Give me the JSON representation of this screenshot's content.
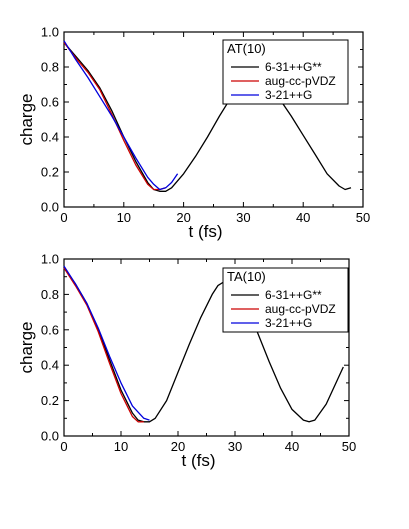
{
  "chart_data": [
    {
      "type": "line",
      "xlabel": "t (fs)",
      "ylabel": "charge",
      "xlim": [
        0,
        50
      ],
      "ylim": [
        0,
        1.0
      ],
      "xticks": [
        0,
        10,
        20,
        30,
        40,
        50
      ],
      "xtick_labels": [
        "0",
        "10",
        "20",
        "30",
        "40",
        "50"
      ],
      "yticks": [
        0.0,
        0.2,
        0.4,
        0.6,
        0.8,
        1.0
      ],
      "ytick_labels": [
        "0.0",
        "0.2",
        "0.4",
        "0.6",
        "0.8",
        "1.0"
      ],
      "grid": false,
      "legend_position": "top-right",
      "legend_title": "AT(10)",
      "series": [
        {
          "name": "6-31++G**",
          "color": "#000000",
          "x": [
            0,
            2,
            4,
            6,
            8,
            10,
            12,
            14,
            15,
            16,
            17,
            18,
            20,
            22,
            24,
            26,
            28,
            30,
            31,
            32,
            34,
            36,
            38,
            40,
            42,
            44,
            46,
            47,
            48
          ],
          "y": [
            0.94,
            0.86,
            0.78,
            0.68,
            0.55,
            0.4,
            0.26,
            0.14,
            0.1,
            0.09,
            0.09,
            0.11,
            0.19,
            0.29,
            0.4,
            0.52,
            0.63,
            0.72,
            0.74,
            0.74,
            0.7,
            0.62,
            0.52,
            0.41,
            0.3,
            0.19,
            0.12,
            0.1,
            0.11
          ]
        },
        {
          "name": "aug-cc-pVDZ",
          "color": "#cc0000",
          "x": [
            0,
            2,
            4,
            6,
            8,
            10,
            12,
            14,
            15,
            16,
            17
          ],
          "y": [
            0.94,
            0.85,
            0.77,
            0.67,
            0.53,
            0.38,
            0.24,
            0.13,
            0.1,
            0.1,
            0.11
          ]
        },
        {
          "name": "3-21++G",
          "color": "#0000dd",
          "x": [
            0,
            2,
            4,
            6,
            8,
            10,
            12,
            14,
            15,
            16,
            17,
            18,
            19
          ],
          "y": [
            0.95,
            0.84,
            0.74,
            0.63,
            0.52,
            0.4,
            0.28,
            0.17,
            0.13,
            0.1,
            0.11,
            0.14,
            0.19
          ]
        }
      ]
    },
    {
      "type": "line",
      "xlabel": "t (fs)",
      "ylabel": "charge",
      "xlim": [
        0,
        50
      ],
      "ylim": [
        0,
        1.0
      ],
      "xticks": [
        0,
        10,
        20,
        30,
        40,
        50
      ],
      "xtick_labels": [
        "0",
        "10",
        "20",
        "30",
        "40",
        "50"
      ],
      "yticks": [
        0.0,
        0.2,
        0.4,
        0.6,
        0.8,
        1.0
      ],
      "ytick_labels": [
        "0.0",
        "0.2",
        "0.4",
        "0.6",
        "0.8",
        "1.0"
      ],
      "grid": false,
      "legend_position": "top-right",
      "legend_title": "TA(10)",
      "series": [
        {
          "name": "6-31++G**",
          "color": "#000000",
          "x": [
            0,
            2,
            4,
            6,
            8,
            10,
            12,
            13,
            14,
            15,
            16,
            18,
            20,
            22,
            24,
            26,
            27,
            28,
            29,
            30,
            32,
            34,
            36,
            38,
            40,
            42,
            43,
            44,
            46,
            48,
            49
          ],
          "y": [
            0.95,
            0.86,
            0.75,
            0.6,
            0.43,
            0.26,
            0.13,
            0.09,
            0.08,
            0.08,
            0.1,
            0.2,
            0.36,
            0.52,
            0.67,
            0.8,
            0.85,
            0.87,
            0.87,
            0.85,
            0.74,
            0.58,
            0.42,
            0.27,
            0.15,
            0.09,
            0.08,
            0.09,
            0.18,
            0.32,
            0.39
          ]
        },
        {
          "name": "aug-cc-pVDZ",
          "color": "#cc0000",
          "x": [
            0,
            2,
            4,
            6,
            8,
            10,
            12,
            13,
            14
          ],
          "y": [
            0.95,
            0.85,
            0.74,
            0.59,
            0.41,
            0.24,
            0.11,
            0.08,
            0.08
          ]
        },
        {
          "name": "3-21++G",
          "color": "#0000dd",
          "x": [
            0,
            2,
            4,
            6,
            8,
            10,
            12,
            14,
            15
          ],
          "y": [
            0.96,
            0.86,
            0.75,
            0.61,
            0.45,
            0.3,
            0.17,
            0.1,
            0.09
          ]
        }
      ]
    }
  ]
}
